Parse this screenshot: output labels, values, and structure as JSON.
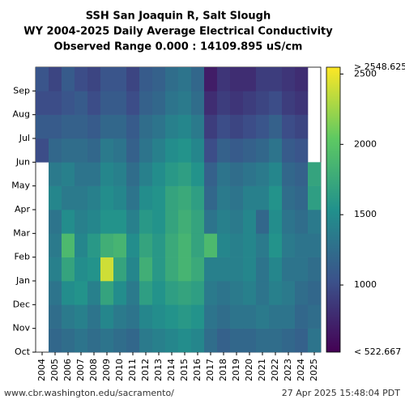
{
  "chart_data": {
    "type": "heatmap",
    "title": [
      "SSH San Joaquin R, Salt Slough",
      "WY 2004-2025 Daily Average Electrical Conductivity",
      "Observed Range 0.000 : 14109.895 uS/cm"
    ],
    "x": [
      "2004",
      "2005",
      "2006",
      "2007",
      "2008",
      "2009",
      "2010",
      "2011",
      "2012",
      "2013",
      "2014",
      "2015",
      "2016",
      "2017",
      "2018",
      "2019",
      "2020",
      "2021",
      "2022",
      "2023",
      "2024",
      "2025"
    ],
    "months": [
      "Oct",
      "Nov",
      "Dec",
      "Jan",
      "Feb",
      "Mar",
      "Apr",
      "May",
      "Jun",
      "Jul",
      "Aug",
      "Sep"
    ],
    "z": [
      [
        null,
        null,
        null,
        null,
        null,
        null,
        null,
        null,
        1000,
        1100,
        1000,
        1050
      ],
      [
        1200,
        1250,
        1300,
        1400,
        1350,
        1300,
        1450,
        1350,
        1200,
        1100,
        1000,
        950
      ],
      [
        1250,
        1350,
        1500,
        1700,
        1900,
        1500,
        1350,
        1400,
        1250,
        1150,
        1050,
        1100
      ],
      [
        1300,
        1400,
        1550,
        1500,
        1450,
        1400,
        1350,
        1300,
        1250,
        1150,
        1100,
        1000
      ],
      [
        1250,
        1300,
        1400,
        1550,
        1600,
        1450,
        1400,
        1300,
        1200,
        1100,
        1000,
        950
      ],
      [
        1300,
        1450,
        1700,
        2400,
        1800,
        1550,
        1500,
        1450,
        1350,
        1200,
        1100,
        1050
      ],
      [
        1250,
        1350,
        1500,
        1700,
        1850,
        1550,
        1450,
        1400,
        1300,
        1200,
        1100,
        1050
      ],
      [
        1200,
        1300,
        1350,
        1450,
        1500,
        1400,
        1300,
        1250,
        1150,
        1100,
        1000,
        950
      ],
      [
        1350,
        1450,
        1650,
        1800,
        1700,
        1600,
        1500,
        1400,
        1300,
        1250,
        1150,
        1100
      ],
      [
        1400,
        1500,
        1550,
        1600,
        1600,
        1550,
        1550,
        1500,
        1400,
        1300,
        1200,
        1150
      ],
      [
        1450,
        1550,
        1650,
        1750,
        1750,
        1700,
        1700,
        1600,
        1500,
        1400,
        1300,
        1250
      ],
      [
        1500,
        1600,
        1700,
        1850,
        1850,
        1800,
        1750,
        1650,
        1550,
        1450,
        1350,
        1300
      ],
      [
        1450,
        1550,
        1650,
        1750,
        1700,
        1700,
        1650,
        1550,
        1450,
        1350,
        1250,
        1200
      ],
      [
        1250,
        1300,
        1350,
        1400,
        1900,
        1300,
        1200,
        1150,
        1000,
        900,
        800,
        700
      ],
      [
        1150,
        1250,
        1300,
        1400,
        1450,
        1400,
        1350,
        1300,
        1150,
        1000,
        900,
        850
      ],
      [
        1200,
        1300,
        1350,
        1400,
        1400,
        1350,
        1300,
        1250,
        1100,
        950,
        850,
        800
      ],
      [
        1200,
        1300,
        1400,
        1450,
        1450,
        1450,
        1400,
        1300,
        1150,
        1000,
        900,
        800
      ],
      [
        1250,
        1350,
        1300,
        1300,
        1350,
        1200,
        1400,
        1350,
        1200,
        1050,
        950,
        900
      ],
      [
        1250,
        1300,
        1400,
        1450,
        1550,
        1500,
        1550,
        1450,
        1300,
        1150,
        1000,
        900
      ],
      [
        1200,
        1300,
        1350,
        1300,
        1350,
        1300,
        1250,
        1200,
        1100,
        1000,
        900,
        850
      ],
      [
        1150,
        1200,
        1250,
        1300,
        1300,
        1250,
        1200,
        1150,
        1050,
        950,
        850,
        800
      ],
      [
        1300,
        1250,
        1200,
        1250,
        1300,
        1350,
        1650,
        1700,
        null,
        null,
        null,
        null
      ]
    ],
    "clim": [
      522.667,
      2548.625
    ],
    "colormap": "viridis",
    "cticks": [
      1000,
      1500,
      2000,
      2500
    ],
    "cmax_label": "> 2548.625",
    "cmin_label": "< 522.667",
    "source": "www.cbr.washington.edu/sacramento/",
    "timestamp": "27 Apr 2025 15:48:04 PDT"
  }
}
